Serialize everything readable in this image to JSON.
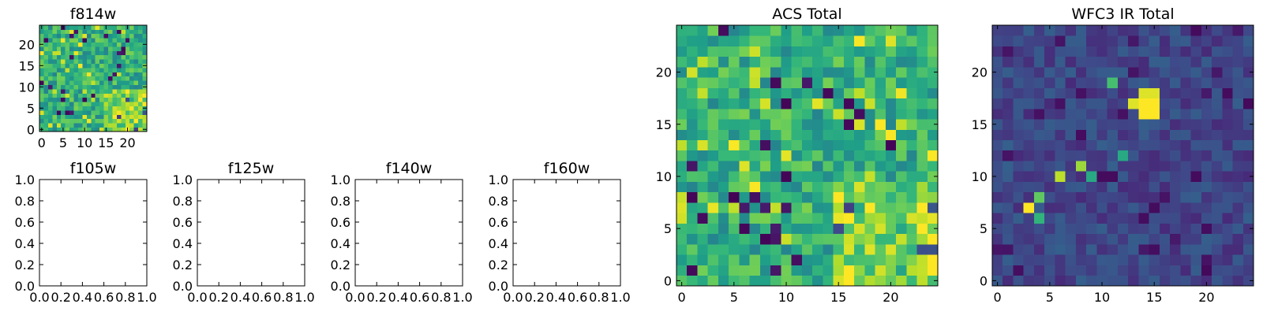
{
  "chart_data": [
    {
      "type": "heatmap",
      "title": "f814w",
      "colormap": "viridis",
      "grid": false,
      "xlim": [
        -0.5,
        24.5
      ],
      "ylim": [
        -0.5,
        24.5
      ],
      "xticks": [
        0,
        5,
        10,
        15,
        20
      ],
      "yticks": [
        0,
        5,
        10,
        15,
        20
      ],
      "image_size": [
        25,
        25
      ],
      "value_range": [
        0,
        1
      ]
    },
    {
      "type": "heatmap",
      "title": "f105w",
      "empty": true,
      "xlim": [
        0,
        1
      ],
      "ylim": [
        0,
        1
      ],
      "xticks": [
        "0.0",
        "0.2",
        "0.4",
        "0.6",
        "0.8",
        "1.0"
      ],
      "yticks": [
        "0.0",
        "0.2",
        "0.4",
        "0.6",
        "0.8",
        "1.0"
      ]
    },
    {
      "type": "heatmap",
      "title": "f125w",
      "empty": true,
      "xlim": [
        0,
        1
      ],
      "ylim": [
        0,
        1
      ],
      "xticks": [
        "0.0",
        "0.2",
        "0.4",
        "0.6",
        "0.8",
        "1.0"
      ],
      "yticks": [
        "0.0",
        "0.2",
        "0.4",
        "0.6",
        "0.8",
        "1.0"
      ]
    },
    {
      "type": "heatmap",
      "title": "f140w",
      "empty": true,
      "xlim": [
        0,
        1
      ],
      "ylim": [
        0,
        1
      ],
      "xticks": [
        "0.0",
        "0.2",
        "0.4",
        "0.6",
        "0.8",
        "1.0"
      ],
      "yticks": [
        "0.0",
        "0.2",
        "0.4",
        "0.6",
        "0.8",
        "1.0"
      ]
    },
    {
      "type": "heatmap",
      "title": "f160w",
      "empty": true,
      "xlim": [
        0,
        1
      ],
      "ylim": [
        0,
        1
      ],
      "xticks": [
        "0.0",
        "0.2",
        "0.4",
        "0.6",
        "0.8",
        "1.0"
      ],
      "yticks": [
        "0.0",
        "0.2",
        "0.4",
        "0.6",
        "0.8",
        "1.0"
      ]
    },
    {
      "type": "heatmap",
      "title": "ACS Total",
      "colormap": "viridis",
      "grid": false,
      "xlim": [
        -0.5,
        24.5
      ],
      "ylim": [
        -0.5,
        24.5
      ],
      "xticks": [
        0,
        5,
        10,
        15,
        20
      ],
      "yticks": [
        0,
        5,
        10,
        15,
        20
      ],
      "image_size": [
        25,
        25
      ],
      "value_range": [
        0,
        1
      ]
    },
    {
      "type": "heatmap",
      "title": "WFC3 IR Total",
      "colormap": "viridis",
      "grid": false,
      "xlim": [
        -0.5,
        24.5
      ],
      "ylim": [
        -0.5,
        24.5
      ],
      "xticks": [
        0,
        5,
        10,
        15,
        20
      ],
      "yticks": [
        0,
        5,
        10,
        15,
        20
      ],
      "image_size": [
        25,
        25
      ],
      "value_range": [
        0,
        1
      ],
      "bright_pixels": [
        {
          "x": 14,
          "y": 17,
          "level": 1.0
        },
        {
          "x": 15,
          "y": 17,
          "level": 1.0
        },
        {
          "x": 14,
          "y": 16,
          "level": 1.0
        },
        {
          "x": 15,
          "y": 16,
          "level": 1.0
        },
        {
          "x": 13,
          "y": 17,
          "level": 0.95
        },
        {
          "x": 15,
          "y": 18,
          "level": 0.95
        },
        {
          "x": 14,
          "y": 18,
          "level": 0.95
        },
        {
          "x": 3,
          "y": 7,
          "level": 1.0
        },
        {
          "x": 6,
          "y": 10,
          "level": 0.9
        },
        {
          "x": 8,
          "y": 11,
          "level": 0.85
        },
        {
          "x": 4,
          "y": 8,
          "level": 0.75
        },
        {
          "x": 4,
          "y": 6,
          "level": 0.65
        },
        {
          "x": 11,
          "y": 19,
          "level": 0.7
        },
        {
          "x": 12,
          "y": 12,
          "level": 0.6
        },
        {
          "x": 9,
          "y": 10,
          "level": 0.6
        }
      ]
    }
  ]
}
